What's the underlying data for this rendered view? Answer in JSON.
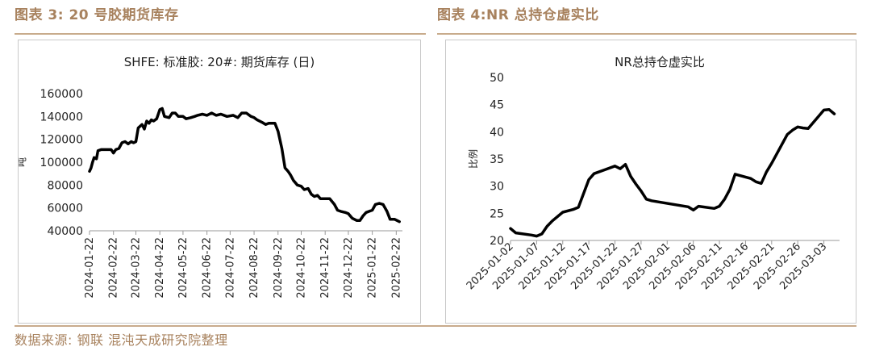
{
  "figures": {
    "left_title": "图表 3: 20 号胶期货库存",
    "right_title": "图表 4:NR 总持仓虚实比"
  },
  "source": "数据来源: 钢联 混沌天成研究院整理",
  "chart_data": [
    {
      "type": "line",
      "title": "SHFE: 标准胶: 20#: 期货库存 (日)",
      "ylabel": "吨",
      "xlabel": "",
      "ylim": [
        40000,
        160000
      ],
      "yticks": [
        40000,
        60000,
        80000,
        100000,
        120000,
        140000,
        160000
      ],
      "grid": false,
      "xlim": [
        "2024-01-22",
        "2025-03-02"
      ],
      "xticks": [
        "2024-01-22",
        "2024-02-22",
        "2024-03-22",
        "2024-04-22",
        "2024-05-22",
        "2024-06-22",
        "2024-07-22",
        "2024-08-22",
        "2024-09-22",
        "2024-10-22",
        "2024-11-22",
        "2024-12-22",
        "2025-01-22",
        "2025-02-22"
      ],
      "series": [
        {
          "color": "#000000",
          "points": [
            [
              "2024-01-22",
              92000
            ],
            [
              "2024-01-24",
              95000
            ],
            [
              "2024-01-26",
              100000
            ],
            [
              "2024-01-28",
              104000
            ],
            [
              "2024-01-31",
              103000
            ],
            [
              "2024-02-02",
              110000
            ],
            [
              "2024-02-06",
              111000
            ],
            [
              "2024-02-14",
              111000
            ],
            [
              "2024-02-19",
              111000
            ],
            [
              "2024-02-22",
              108000
            ],
            [
              "2024-02-25",
              111000
            ],
            [
              "2024-02-29",
              112000
            ],
            [
              "2024-03-04",
              117000
            ],
            [
              "2024-03-08",
              118000
            ],
            [
              "2024-03-12",
              116000
            ],
            [
              "2024-03-16",
              118000
            ],
            [
              "2024-03-19",
              117000
            ],
            [
              "2024-03-22",
              118000
            ],
            [
              "2024-03-25",
              130000
            ],
            [
              "2024-03-30",
              133000
            ],
            [
              "2024-04-02",
              129000
            ],
            [
              "2024-04-05",
              136000
            ],
            [
              "2024-04-08",
              134000
            ],
            [
              "2024-04-11",
              137000
            ],
            [
              "2024-04-14",
              136000
            ],
            [
              "2024-04-18",
              138000
            ],
            [
              "2024-04-22",
              146000
            ],
            [
              "2024-04-25",
              147000
            ],
            [
              "2024-04-28",
              140000
            ],
            [
              "2024-05-04",
              139000
            ],
            [
              "2024-05-08",
              143000
            ],
            [
              "2024-05-12",
              143000
            ],
            [
              "2024-05-16",
              140000
            ],
            [
              "2024-05-22",
              140000
            ],
            [
              "2024-05-26",
              138000
            ],
            [
              "2024-06-01",
              139000
            ],
            [
              "2024-06-06",
              140000
            ],
            [
              "2024-06-10",
              141000
            ],
            [
              "2024-06-16",
              142000
            ],
            [
              "2024-06-22",
              141000
            ],
            [
              "2024-06-28",
              143000
            ],
            [
              "2024-07-04",
              141000
            ],
            [
              "2024-07-10",
              142000
            ],
            [
              "2024-07-18",
              140000
            ],
            [
              "2024-07-26",
              141000
            ],
            [
              "2024-08-01",
              139000
            ],
            [
              "2024-08-06",
              143000
            ],
            [
              "2024-08-12",
              143000
            ],
            [
              "2024-08-18",
              140000
            ],
            [
              "2024-08-22",
              139000
            ],
            [
              "2024-08-26",
              137000
            ],
            [
              "2024-09-01",
              135000
            ],
            [
              "2024-09-06",
              133000
            ],
            [
              "2024-09-10",
              134000
            ],
            [
              "2024-09-18",
              134000
            ],
            [
              "2024-09-22",
              127000
            ],
            [
              "2024-09-27",
              112000
            ],
            [
              "2024-10-01",
              95000
            ],
            [
              "2024-10-05",
              92000
            ],
            [
              "2024-10-08",
              89000
            ],
            [
              "2024-10-12",
              84000
            ],
            [
              "2024-10-17",
              80000
            ],
            [
              "2024-10-22",
              79000
            ],
            [
              "2024-10-26",
              76000
            ],
            [
              "2024-10-31",
              77000
            ],
            [
              "2024-11-04",
              72000
            ],
            [
              "2024-11-08",
              70000
            ],
            [
              "2024-11-12",
              71000
            ],
            [
              "2024-11-16",
              68000
            ],
            [
              "2024-11-22",
              68000
            ],
            [
              "2024-11-28",
              68000
            ],
            [
              "2024-12-04",
              63000
            ],
            [
              "2024-12-08",
              58000
            ],
            [
              "2024-12-12",
              57000
            ],
            [
              "2024-12-18",
              56000
            ],
            [
              "2024-12-22",
              55000
            ],
            [
              "2024-12-27",
              51000
            ],
            [
              "2025-01-02",
              49000
            ],
            [
              "2025-01-06",
              49000
            ],
            [
              "2025-01-10",
              53000
            ],
            [
              "2025-01-14",
              56000
            ],
            [
              "2025-01-18",
              57000
            ],
            [
              "2025-01-22",
              58000
            ],
            [
              "2025-01-26",
              63000
            ],
            [
              "2025-01-31",
              64000
            ],
            [
              "2025-02-05",
              63000
            ],
            [
              "2025-02-10",
              57000
            ],
            [
              "2025-02-14",
              50000
            ],
            [
              "2025-02-20",
              50000
            ],
            [
              "2025-02-26",
              48000
            ]
          ]
        }
      ]
    },
    {
      "type": "line",
      "title": "NR总持仓虚实比",
      "ylabel": "比例",
      "xlabel": "",
      "ylim": [
        20,
        50
      ],
      "yticks": [
        20,
        25,
        30,
        35,
        40,
        45,
        50
      ],
      "grid": false,
      "xlim": [
        "2025-01-02",
        "2025-03-06"
      ],
      "xticks": [
        "2025-01-02",
        "2025-01-07",
        "2025-01-12",
        "2025-01-17",
        "2025-01-22",
        "2025-01-27",
        "2025-02-01",
        "2025-02-06",
        "2025-02-11",
        "2025-02-16",
        "2025-02-21",
        "2025-02-26",
        "2025-03-03"
      ],
      "series": [
        {
          "color": "#000000",
          "points": [
            [
              "2025-01-02",
              22.2
            ],
            [
              "2025-01-03",
              21.4
            ],
            [
              "2025-01-06",
              21.0
            ],
            [
              "2025-01-07",
              20.8
            ],
            [
              "2025-01-08",
              21.2
            ],
            [
              "2025-01-09",
              22.6
            ],
            [
              "2025-01-10",
              23.6
            ],
            [
              "2025-01-12",
              25.2
            ],
            [
              "2025-01-14",
              25.7
            ],
            [
              "2025-01-15",
              26.1
            ],
            [
              "2025-01-17",
              31.2
            ],
            [
              "2025-01-18",
              32.3
            ],
            [
              "2025-01-20",
              33.0
            ],
            [
              "2025-01-22",
              33.7
            ],
            [
              "2025-01-23",
              33.2
            ],
            [
              "2025-01-24",
              34.0
            ],
            [
              "2025-01-25",
              31.8
            ],
            [
              "2025-01-26",
              30.4
            ],
            [
              "2025-01-27",
              29.1
            ],
            [
              "2025-01-28",
              27.6
            ],
            [
              "2025-01-29",
              27.3
            ],
            [
              "2025-02-05",
              26.2
            ],
            [
              "2025-02-06",
              25.6
            ],
            [
              "2025-02-07",
              26.3
            ],
            [
              "2025-02-10",
              25.9
            ],
            [
              "2025-02-11",
              26.3
            ],
            [
              "2025-02-12",
              27.6
            ],
            [
              "2025-02-13",
              29.4
            ],
            [
              "2025-02-14",
              32.2
            ],
            [
              "2025-02-17",
              31.4
            ],
            [
              "2025-02-18",
              30.8
            ],
            [
              "2025-02-19",
              30.5
            ],
            [
              "2025-02-20",
              32.6
            ],
            [
              "2025-02-21",
              34.2
            ],
            [
              "2025-02-24",
              39.5
            ],
            [
              "2025-02-25",
              40.3
            ],
            [
              "2025-02-26",
              40.9
            ],
            [
              "2025-02-27",
              40.7
            ],
            [
              "2025-02-28",
              40.6
            ],
            [
              "2025-03-03",
              44.0
            ],
            [
              "2025-03-04",
              44.1
            ],
            [
              "2025-03-05",
              43.3
            ]
          ]
        }
      ]
    }
  ]
}
